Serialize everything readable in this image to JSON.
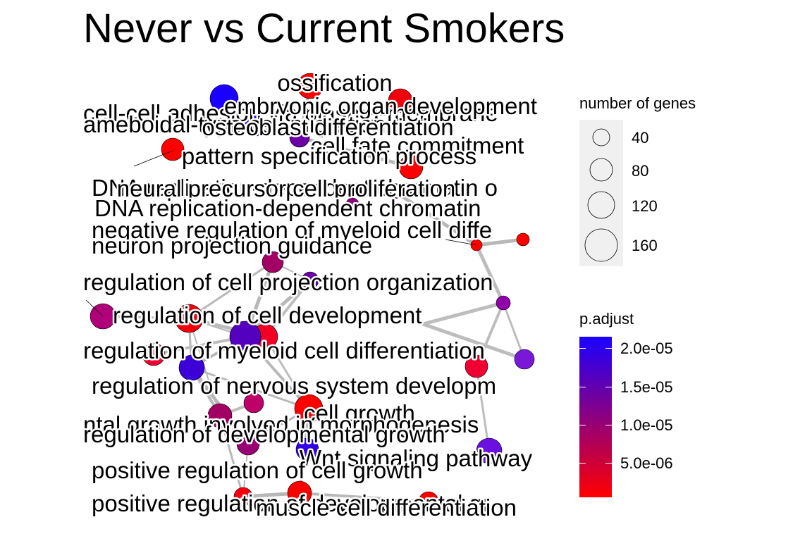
{
  "title": "Never vs Current Smokers",
  "chart_data": {
    "type": "network",
    "title": "Never vs Current Smokers",
    "nodes": [
      {
        "term": "ossification",
        "p_adjust": 1e-06
      },
      {
        "term": "embryonic organ development",
        "p_adjust": 2e-06
      },
      {
        "term": "cell-cell adhesion via plasma-membrane adhesion molecules",
        "p_adjust": 2.1e-05
      },
      {
        "term": "ameboidal-type cell migration",
        "p_adjust": 1.8e-05
      },
      {
        "term": "osteoblast differentiation",
        "p_adjust": 1.4e-05
      },
      {
        "term": "cell fate commitment",
        "p_adjust": 1e-06
      },
      {
        "term": "pattern specification process",
        "p_adjust": 1e-06
      },
      {
        "term": "DNA replication-dependent chromatin organization",
        "p_adjust": 1.2e-05
      },
      {
        "term": "neural precursor cell proliferation",
        "p_adjust": 1.1e-05
      },
      {
        "term": "DNA replication-dependent chromatin assembly",
        "p_adjust": 1e-06
      },
      {
        "term": "negative regulation of myeloid cell differentiation",
        "p_adjust": 1e-06
      },
      {
        "term": "neuron projection guidance",
        "p_adjust": 9e-06
      },
      {
        "term": "regulation of cell projection organization",
        "p_adjust": 1.4e-05
      },
      {
        "term": "regulation of cell development",
        "p_adjust": 2e-06
      },
      {
        "term": "regulation of myeloid cell differentiation",
        "p_adjust": 1.6e-05
      },
      {
        "term": "regulation of nervous system development",
        "p_adjust": 1.8e-05
      },
      {
        "term": "cell growth",
        "p_adjust": 1e-06
      },
      {
        "term": "developmental growth involved in morphogenesis",
        "p_adjust": 9e-06
      },
      {
        "term": "regulation of developmental growth",
        "p_adjust": 1e-05
      },
      {
        "term": "Wnt signaling pathway",
        "p_adjust": 1.9e-05
      },
      {
        "term": "positive regulation of cell growth",
        "p_adjust": 2e-06
      },
      {
        "term": "positive regulation of developmental growth",
        "p_adjust": 1e-06
      },
      {
        "term": "muscle cell differentiation",
        "p_adjust": 1e-06
      }
    ],
    "size_legend": {
      "title": "number of genes",
      "labels": [
        "40",
        "80",
        "120",
        "160"
      ],
      "values": [
        40,
        80,
        120,
        160
      ]
    },
    "color_legend": {
      "title": "p.adjust",
      "labels": [
        "2.0e-05",
        "1.5e-05",
        "1.0e-05",
        "5.0e-06"
      ],
      "values": [
        2e-05,
        1.5e-05,
        1e-05,
        5e-06
      ],
      "low_color": "#ff0000",
      "high_color": "#1a00ff"
    }
  },
  "plot_labels": [
    "ossification",
    "cell-cell adhesion via plasma-membrane",
    "embryonic organ development",
    "ameboidal-type cell migration",
    "osteoblast differentiation",
    "cell fate commitment",
    "pattern specification process",
    "DNA replication-dependent chromatin o",
    "neural precursor cell proliferation",
    "DNA replication-dependent chromatin",
    "negative regulation of myeloid cell diffe",
    "neuron projection guidance",
    "regulation of cell projection organization",
    "regulation of cell development",
    "regulation of myeloid cell differentiation",
    "regulation of nervous system developm",
    "cell growth",
    "ntal growth involved in morphogenesis",
    "regulation of developmental growth",
    "Wnt signaling pathway",
    "positive regulation of cell growth",
    "positive regulation of developmental gr",
    "muscle cell differentiation"
  ]
}
